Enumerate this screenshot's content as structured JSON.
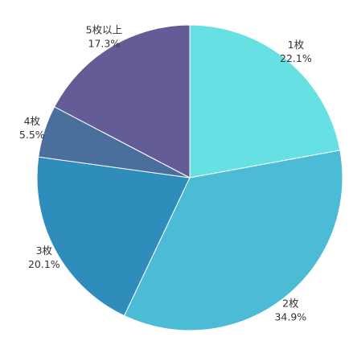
{
  "chart_data": {
    "type": "pie",
    "start_angle_deg": 0,
    "direction": "clockwise",
    "slices": [
      {
        "label": "1枚",
        "value": 22.1,
        "value_text": "22.1%",
        "color": "#66e0e3"
      },
      {
        "label": "2枚",
        "value": 34.9,
        "value_text": "34.9%",
        "color": "#4bbbd6"
      },
      {
        "label": "3枚",
        "value": 20.1,
        "value_text": "20.1%",
        "color": "#2e8dbb"
      },
      {
        "label": "4枚",
        "value": 5.5,
        "value_text": "5.5%",
        "color": "#4a6f9c"
      },
      {
        "label": "5枚以上",
        "value": 17.3,
        "value_text": "17.3%",
        "color": "#635c96"
      }
    ]
  }
}
